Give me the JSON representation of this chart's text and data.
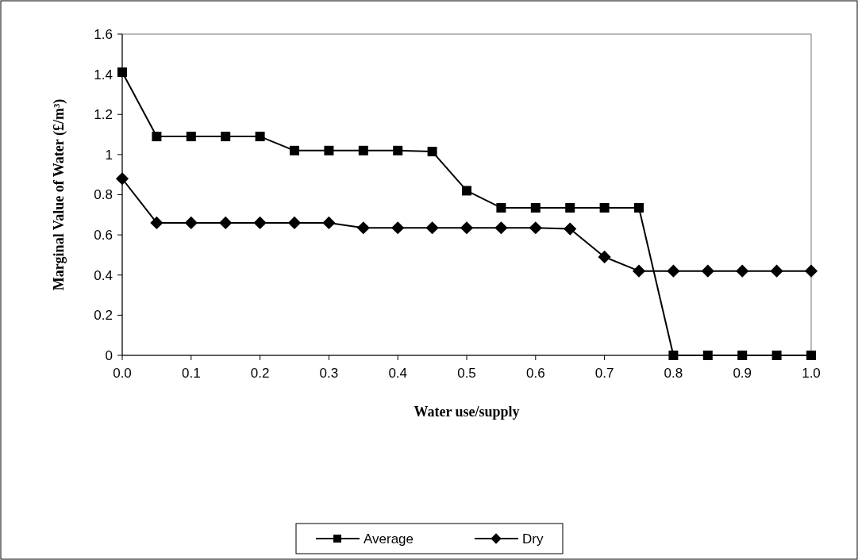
{
  "chart_data": {
    "type": "line",
    "xlabel": "Water use/supply",
    "ylabel": "Marginal Value of Water (£/m³)",
    "x": [
      0,
      0.05,
      0.1,
      0.15,
      0.2,
      0.25,
      0.3,
      0.35,
      0.4,
      0.45,
      0.5,
      0.55,
      0.6,
      0.65,
      0.7,
      0.75,
      0.8,
      0.85,
      0.9,
      0.95,
      1.0
    ],
    "series": [
      {
        "name": "Average",
        "color": "#000000",
        "marker": "square",
        "values": [
          1.41,
          1.09,
          1.09,
          1.09,
          1.09,
          1.02,
          1.02,
          1.02,
          1.02,
          1.015,
          0.82,
          0.735,
          0.735,
          0.735,
          0.735,
          0.735,
          0,
          0,
          0,
          0,
          0
        ]
      },
      {
        "name": "Dry",
        "color": "#000000",
        "marker": "diamond",
        "values": [
          0.88,
          0.66,
          0.66,
          0.66,
          0.66,
          0.66,
          0.66,
          0.635,
          0.635,
          0.635,
          0.635,
          0.635,
          0.635,
          0.63,
          0.49,
          0.42,
          0.42,
          0.42,
          0.42,
          0.42,
          0.42
        ]
      }
    ],
    "xlim": [
      0,
      1.0
    ],
    "xticks": [
      {
        "value": 0,
        "label": "0.0"
      },
      0.1,
      0.2,
      0.3,
      0.4,
      0.5,
      0.6,
      0.7,
      0.8,
      0.9,
      {
        "value": 1.0,
        "label": "1.0"
      }
    ],
    "ylim": [
      0,
      1.6
    ],
    "yticks": [
      0,
      0.2,
      0.4,
      0.6,
      0.8,
      1,
      1.2,
      1.4,
      1.6
    ],
    "grid": false,
    "legend": "bottom",
    "line_style": "solid"
  }
}
